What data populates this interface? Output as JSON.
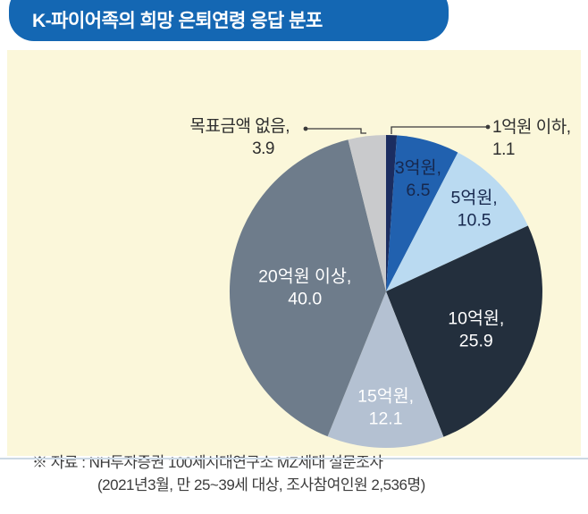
{
  "title": "K-파이어족의 희망 은퇴연령 응답 분포",
  "source": {
    "line1": "※ 자료 : NH투자증권 100세시대연구소 MZ세대 설문조사",
    "line2": "(2021년3월, 만 25~39세 대상, 조사참여인원 2,536명)"
  },
  "colors": {
    "title_bg": "#1467b3",
    "title_text": "#ffffff",
    "panel_bg": "#fbf7da",
    "divider": "#ccd9e4",
    "leader_line": "#3a3a3a",
    "inside_label_dark": "#17284e",
    "inside_label_light": "#ffffff"
  },
  "chart_data": {
    "type": "pie",
    "title": "K-파이어족의 희망 은퇴연령 응답 분포",
    "start_angle_deg": 0,
    "direction": "clockwise",
    "unit": "%",
    "slices": [
      {
        "label": "1억원 이하",
        "value": 1.1,
        "color": "#1b2d60",
        "label_placement": "outside"
      },
      {
        "label": "3억원",
        "value": 6.5,
        "color": "#2161af",
        "label_color": "#17284e",
        "label_placement": "inside"
      },
      {
        "label": "5억원",
        "value": 10.5,
        "color": "#badaf1",
        "label_color": "#17284e",
        "label_placement": "inside"
      },
      {
        "label": "10억원",
        "value": 25.9,
        "color": "#232f3d",
        "label_color": "#ffffff",
        "label_placement": "inside"
      },
      {
        "label": "15억원",
        "value": 12.1,
        "color": "#b4c1d2",
        "label_color": "#ffffff",
        "label_placement": "inside"
      },
      {
        "label": "20억원 이상",
        "value": 40.0,
        "color": "#6e7c8b",
        "label_color": "#ffffff",
        "label_placement": "inside"
      },
      {
        "label": "목표금액 없음",
        "value": 3.9,
        "color": "#c9cacc",
        "label_placement": "outside"
      }
    ]
  }
}
